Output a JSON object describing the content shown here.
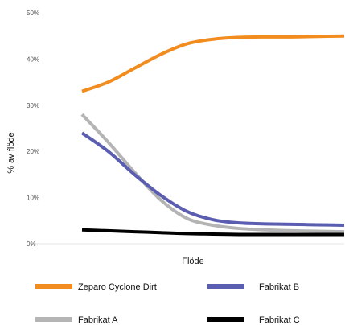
{
  "chart_data": {
    "type": "line",
    "title": "",
    "xlabel": "Flöde",
    "ylabel": "% av flöde",
    "ylim": [
      0,
      50
    ],
    "yticks": [
      "0%",
      "10%",
      "20%",
      "30%",
      "40%",
      "50%"
    ],
    "ytick_values": [
      0,
      10,
      20,
      30,
      40,
      50
    ],
    "x": [
      0,
      1,
      2,
      3,
      4,
      5,
      6,
      7,
      8,
      9,
      10
    ],
    "xlim": [
      0,
      10
    ],
    "grid": false,
    "legend_placement": "bottom",
    "series": [
      {
        "name": "Zeparo Cyclone Dirt",
        "color": "#f28c1e",
        "values": [
          33,
          35,
          38,
          41,
          43.3,
          44.3,
          44.7,
          44.8,
          44.8,
          44.9,
          45
        ]
      },
      {
        "name": "Fabrikat B",
        "color": "#5b5db0",
        "values": [
          24,
          20,
          15,
          10.5,
          7,
          5.2,
          4.5,
          4.3,
          4.2,
          4.1,
          4.0
        ]
      },
      {
        "name": "Fabrikat A",
        "color": "#b4b4b4",
        "values": [
          28,
          22,
          15.5,
          9.5,
          5.5,
          4,
          3.3,
          3,
          2.8,
          2.7,
          2.6
        ]
      },
      {
        "name": "Fabrikat C",
        "color": "#000000",
        "values": [
          3,
          2.8,
          2.6,
          2.4,
          2.2,
          2.1,
          2.0,
          2.0,
          2.0,
          2.0,
          2.0
        ]
      }
    ]
  }
}
